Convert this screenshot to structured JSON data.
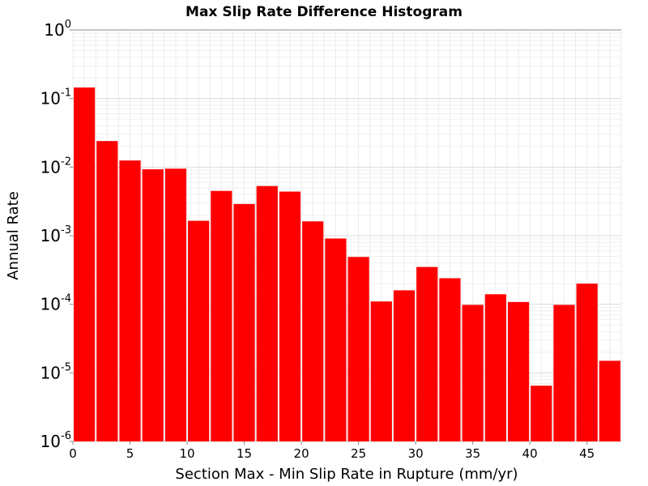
{
  "chart_data": {
    "type": "bar",
    "title": "Max Slip Rate Difference Histogram",
    "xlabel": "Section Max - Min Slip Rate in Rupture (mm/yr)",
    "ylabel": "Annual Rate",
    "xlim": [
      0,
      48
    ],
    "ylim": [
      1e-06,
      1
    ],
    "y_scale": "log",
    "grid": true,
    "bin_width": 2,
    "bar_color": "#ff0000",
    "x_ticks": [
      {
        "value": 0,
        "label": "0"
      },
      {
        "value": 5,
        "label": "5"
      },
      {
        "value": 10,
        "label": "10"
      },
      {
        "value": 15,
        "label": "15"
      },
      {
        "value": 20,
        "label": "20"
      },
      {
        "value": 25,
        "label": "25"
      },
      {
        "value": 30,
        "label": "30"
      },
      {
        "value": 35,
        "label": "35"
      },
      {
        "value": 40,
        "label": "40"
      },
      {
        "value": 45,
        "label": "45"
      }
    ],
    "y_ticks": [
      {
        "value": 1,
        "base": "10",
        "exp": "0"
      },
      {
        "value": 0.1,
        "base": "10",
        "exp": "-1"
      },
      {
        "value": 0.01,
        "base": "10",
        "exp": "-2"
      },
      {
        "value": 0.001,
        "base": "10",
        "exp": "-3"
      },
      {
        "value": 0.0001,
        "base": "10",
        "exp": "-4"
      },
      {
        "value": 1e-05,
        "base": "10",
        "exp": "-5"
      },
      {
        "value": 1e-06,
        "base": "10",
        "exp": "-6"
      }
    ],
    "bins": [
      {
        "x_start": 0,
        "value": 0.145
      },
      {
        "x_start": 2,
        "value": 0.024
      },
      {
        "x_start": 4,
        "value": 0.0125
      },
      {
        "x_start": 6,
        "value": 0.0093
      },
      {
        "x_start": 8,
        "value": 0.0095
      },
      {
        "x_start": 10,
        "value": 0.00165
      },
      {
        "x_start": 12,
        "value": 0.0045
      },
      {
        "x_start": 14,
        "value": 0.0029
      },
      {
        "x_start": 16,
        "value": 0.0053
      },
      {
        "x_start": 18,
        "value": 0.0044
      },
      {
        "x_start": 20,
        "value": 0.00162
      },
      {
        "x_start": 22,
        "value": 0.00091
      },
      {
        "x_start": 24,
        "value": 0.00049
      },
      {
        "x_start": 26,
        "value": 0.00011
      },
      {
        "x_start": 28,
        "value": 0.00016
      },
      {
        "x_start": 30,
        "value": 0.00035
      },
      {
        "x_start": 32,
        "value": 0.00024
      },
      {
        "x_start": 34,
        "value": 9.8e-05
      },
      {
        "x_start": 36,
        "value": 0.00014
      },
      {
        "x_start": 38,
        "value": 0.000108
      },
      {
        "x_start": 40,
        "value": 6.5e-06
      },
      {
        "x_start": 42,
        "value": 9.8e-05
      },
      {
        "x_start": 44,
        "value": 0.0002
      },
      {
        "x_start": 46,
        "value": 1.5e-05
      }
    ]
  }
}
